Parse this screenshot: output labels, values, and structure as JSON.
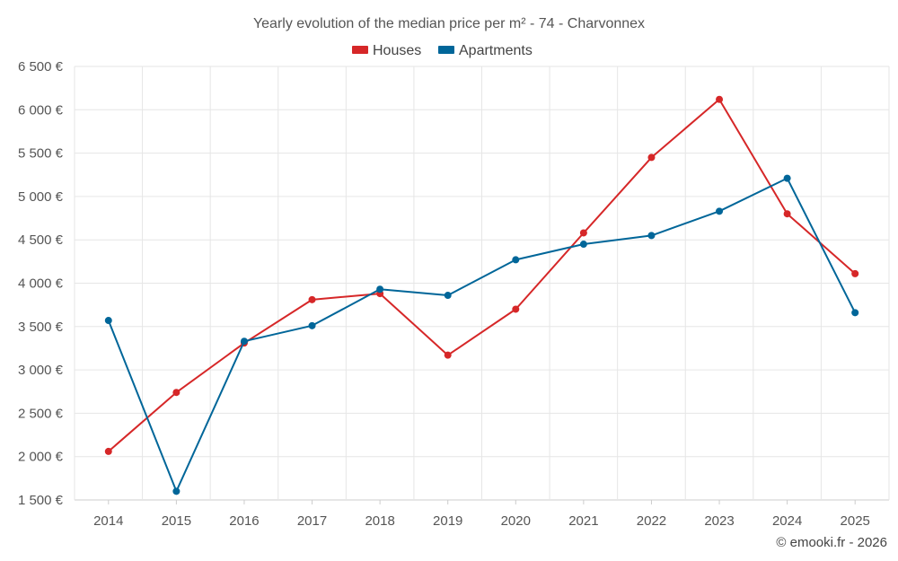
{
  "chart_data": {
    "type": "line",
    "title": "Yearly evolution of the median price per m² - 74 - Charvonnex",
    "xlabel": "",
    "ylabel": "",
    "categories": [
      "2014",
      "2015",
      "2016",
      "2017",
      "2018",
      "2019",
      "2020",
      "2021",
      "2022",
      "2023",
      "2024",
      "2025"
    ],
    "ylim": [
      1500,
      6500
    ],
    "yticks": [
      1500,
      2000,
      2500,
      3000,
      3500,
      4000,
      4500,
      5000,
      5500,
      6000,
      6500
    ],
    "ytick_labels": [
      "1 500 €",
      "2 000 €",
      "2 500 €",
      "3 000 €",
      "3 500 €",
      "4 000 €",
      "4 500 €",
      "5 000 €",
      "5 500 €",
      "6 000 €",
      "6 500 €"
    ],
    "grid": true,
    "legend_position": "top-center",
    "series": [
      {
        "name": "Houses",
        "color": "#d62728",
        "values": [
          2060,
          2740,
          3310,
          3810,
          3880,
          3170,
          3700,
          4580,
          5450,
          6120,
          4800,
          4110
        ]
      },
      {
        "name": "Apartments",
        "color": "#006699",
        "values": [
          3570,
          1600,
          3330,
          3510,
          3930,
          3860,
          4270,
          4450,
          4550,
          4830,
          5210,
          3660
        ]
      }
    ]
  },
  "credit": "© emooki.fr - 2026"
}
